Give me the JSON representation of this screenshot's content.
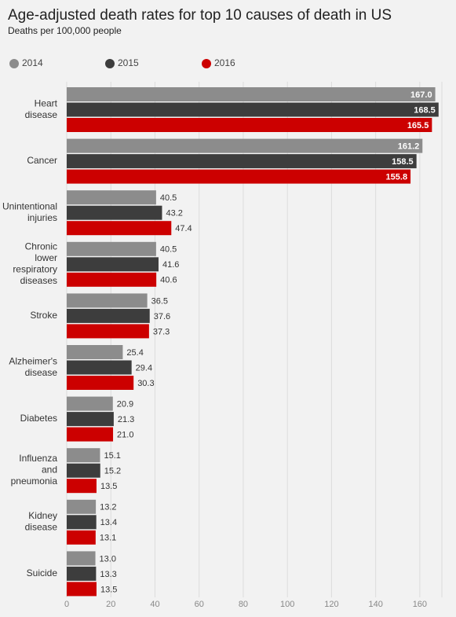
{
  "chart_data": {
    "type": "bar",
    "orientation": "horizontal",
    "title": "Age-adjusted death rates for top 10 causes of death in US",
    "subtitle": "Deaths per 100,000 people",
    "categories": [
      "Heart disease",
      "Cancer",
      "Unintentional injuries",
      "Chronic lower respiratory diseases",
      "Stroke",
      "Alzheimer's disease",
      "Diabetes",
      "Influenza and pneumonia",
      "Kidney disease",
      "Suicide"
    ],
    "series": [
      {
        "name": "2014",
        "color": "#8c8c8c",
        "values": [
          167.0,
          161.2,
          40.5,
          40.5,
          36.5,
          25.4,
          20.9,
          15.1,
          13.2,
          13.0
        ],
        "value_labels": [
          "167.0",
          "161.2",
          "40.5",
          "40.5",
          "36.5",
          "25.4",
          "20.9",
          "15.1",
          "13.2",
          "13.0"
        ]
      },
      {
        "name": "2015",
        "color": "#3d3d3d",
        "values": [
          168.5,
          158.5,
          43.2,
          41.6,
          37.6,
          29.4,
          21.3,
          15.2,
          13.4,
          13.3
        ],
        "value_labels": [
          "168.5",
          "158.5",
          "43.2",
          "41.6",
          "37.6",
          "29.4",
          "21.3",
          "15.2",
          "13.4",
          "13.3"
        ]
      },
      {
        "name": "2016",
        "color": "#cc0000",
        "values": [
          165.5,
          155.8,
          47.4,
          40.6,
          37.3,
          30.3,
          21.0,
          13.5,
          13.1,
          13.5
        ],
        "value_labels": [
          "165.5",
          "155.8",
          "47.4",
          "40.6",
          "37.3",
          "30.3",
          "21.0",
          "13.5",
          "13.1",
          "13.5"
        ]
      }
    ],
    "xlim": [
      0,
      170
    ],
    "xticks": [
      0,
      20,
      40,
      60,
      80,
      100,
      120,
      140,
      160
    ],
    "grid": true,
    "legend": "top"
  }
}
